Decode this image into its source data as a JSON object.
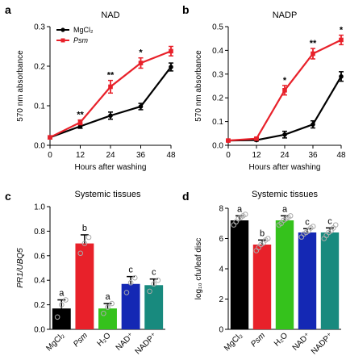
{
  "chart_data": [
    {
      "panel": "a",
      "type": "line",
      "title": "NAD",
      "xlabel": "Hours after washing",
      "ylabel": "570 nm absorbance",
      "x": [
        0,
        12,
        24,
        36,
        48
      ],
      "xlim": [
        0,
        48
      ],
      "ylim": [
        0,
        0.3
      ],
      "xticks": [
        "0",
        "12",
        "24",
        "36",
        "48"
      ],
      "yticks": [
        "0.0",
        "0.1",
        "0.2",
        "0.3"
      ],
      "legend": "top-left",
      "series": [
        {
          "name": "MgCl₂",
          "color": "#000000",
          "values": [
            0.02,
            0.048,
            0.075,
            0.098,
            0.198
          ],
          "err": [
            0.004,
            0.005,
            0.009,
            0.008,
            0.01
          ]
        },
        {
          "name": "Psm",
          "color": "#e8212a",
          "values": [
            0.02,
            0.058,
            0.148,
            0.208,
            0.238
          ],
          "err": [
            0.004,
            0.006,
            0.016,
            0.013,
            0.012
          ]
        }
      ],
      "annotations": [
        {
          "x": 12,
          "text": "**"
        },
        {
          "x": 24,
          "text": "**"
        },
        {
          "x": 36,
          "text": "*"
        }
      ]
    },
    {
      "panel": "b",
      "type": "line",
      "title": "NADP",
      "xlabel": "Hours after washing",
      "ylabel": "570 nm absorbance",
      "x": [
        0,
        12,
        24,
        36,
        48
      ],
      "xlim": [
        0,
        48
      ],
      "ylim": [
        0,
        0.5
      ],
      "xticks": [
        "0",
        "12",
        "24",
        "36",
        "48"
      ],
      "yticks": [
        "0.0",
        "0.1",
        "0.2",
        "0.3",
        "0.4",
        "0.5"
      ],
      "series": [
        {
          "name": "MgCl₂",
          "color": "#000000",
          "values": [
            0.02,
            0.022,
            0.045,
            0.088,
            0.29
          ],
          "err": [
            0.003,
            0.004,
            0.014,
            0.015,
            0.02
          ]
        },
        {
          "name": "Psm",
          "color": "#e8212a",
          "values": [
            0.02,
            0.028,
            0.232,
            0.386,
            0.444
          ],
          "err": [
            0.003,
            0.004,
            0.02,
            0.022,
            0.02
          ]
        }
      ],
      "annotations": [
        {
          "x": 24,
          "text": "*"
        },
        {
          "x": 36,
          "text": "**"
        },
        {
          "x": 48,
          "text": "*"
        }
      ]
    },
    {
      "panel": "c",
      "type": "bar",
      "title": "Systemic tissues",
      "ylabel": "PR1/UBQ5",
      "ylim": [
        0,
        1.0
      ],
      "yticks": [
        "0.0",
        "0.2",
        "0.4",
        "0.6",
        "0.8",
        "1.0"
      ],
      "categories": [
        "MgCl₂",
        "Psm",
        "H₂O",
        "NAD⁺",
        "NADP⁺"
      ],
      "colors": [
        "#000000",
        "#e8212a",
        "#35c21c",
        "#1428b4",
        "#188a7e"
      ],
      "values": [
        0.17,
        0.7,
        0.17,
        0.37,
        0.36
      ],
      "err": [
        0.07,
        0.07,
        0.04,
        0.06,
        0.05
      ],
      "points": [
        [
          0.1,
          0.2,
          0.24
        ],
        [
          0.62,
          0.7,
          0.75
        ],
        [
          0.13,
          0.18,
          0.21
        ],
        [
          0.3,
          0.38,
          0.42
        ],
        [
          0.31,
          0.37,
          0.4
        ]
      ],
      "letters": [
        "a",
        "b",
        "a",
        "c",
        "c"
      ]
    },
    {
      "panel": "d",
      "type": "bar",
      "title": "Systemic tissues",
      "ylabel": "log₁₀ cfu/leaf disc",
      "ylim": [
        0,
        8
      ],
      "yticks": [
        "0",
        "2",
        "4",
        "6",
        "8"
      ],
      "categories": [
        "MgCl₂",
        "Psm",
        "H₂O",
        "NAD⁺",
        "NADP⁺"
      ],
      "colors": [
        "#000000",
        "#e8212a",
        "#35c21c",
        "#1428b4",
        "#188a7e"
      ],
      "values": [
        7.2,
        5.6,
        7.2,
        6.4,
        6.4
      ],
      "err": [
        0.3,
        0.3,
        0.3,
        0.25,
        0.3
      ],
      "points": [
        [
          6.9,
          7.1,
          7.3,
          7.4,
          7.5,
          7.6
        ],
        [
          5.2,
          5.4,
          5.6,
          5.7,
          5.9,
          6.0
        ],
        [
          6.9,
          7.0,
          7.2,
          7.3,
          7.4,
          7.5
        ],
        [
          6.1,
          6.3,
          6.4,
          6.5,
          6.7,
          6.8
        ],
        [
          6.0,
          6.2,
          6.4,
          6.5,
          6.7,
          6.9
        ]
      ],
      "letters": [
        "a",
        "b",
        "a",
        "c",
        "c"
      ]
    }
  ]
}
